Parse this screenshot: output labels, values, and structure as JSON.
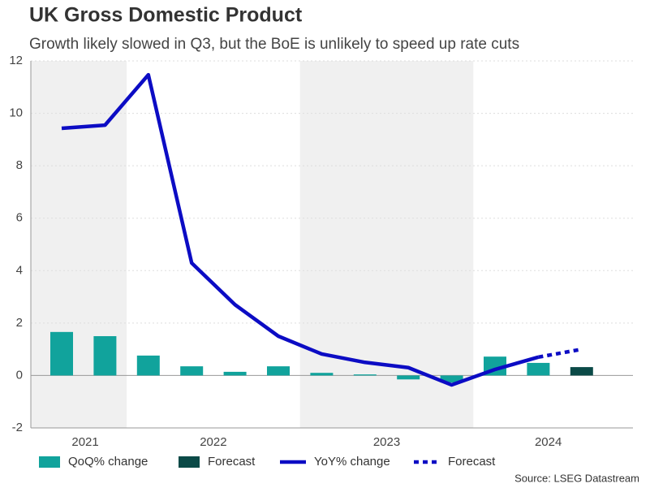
{
  "chart_data": {
    "type": "combo",
    "title": "UK Gross Domestic Product",
    "subtitle": "Growth likely slowed in Q3, but the BoE is unlikely to speed up rate cuts",
    "source": "Source: LSEG Datastream",
    "categories": [
      null,
      null,
      null,
      null,
      null,
      null,
      null,
      null,
      null,
      null,
      null,
      null,
      null
    ],
    "year_labels": [
      "2021",
      "2022",
      "2023",
      "2024"
    ],
    "ylim": [
      -2,
      12
    ],
    "yticks": [
      -2,
      0,
      2,
      4,
      6,
      8,
      10,
      12
    ],
    "grid": true,
    "series": [
      {
        "name": "QoQ% change",
        "type": "bar",
        "color": "#11a39c",
        "values": [
          1.66,
          1.5,
          0.76,
          0.35,
          0.14,
          0.35,
          0.1,
          0.04,
          -0.15,
          -0.27,
          0.72,
          0.48,
          null
        ]
      },
      {
        "name": "Forecast",
        "type": "bar",
        "color": "#0b4a47",
        "values": [
          null,
          null,
          null,
          null,
          null,
          null,
          null,
          null,
          null,
          null,
          null,
          null,
          0.32
        ]
      },
      {
        "name": "YoY% change",
        "type": "line",
        "color": "#0c0cc4",
        "values": [
          9.43,
          9.55,
          11.47,
          4.29,
          2.7,
          1.5,
          0.82,
          0.5,
          0.3,
          -0.36,
          0.23,
          0.7,
          null
        ]
      },
      {
        "name": "Forecast",
        "type": "line",
        "dashed": true,
        "color": "#0c0cc4",
        "values": [
          null,
          null,
          null,
          null,
          null,
          null,
          null,
          null,
          null,
          null,
          null,
          0.7,
          1.0
        ]
      }
    ]
  }
}
